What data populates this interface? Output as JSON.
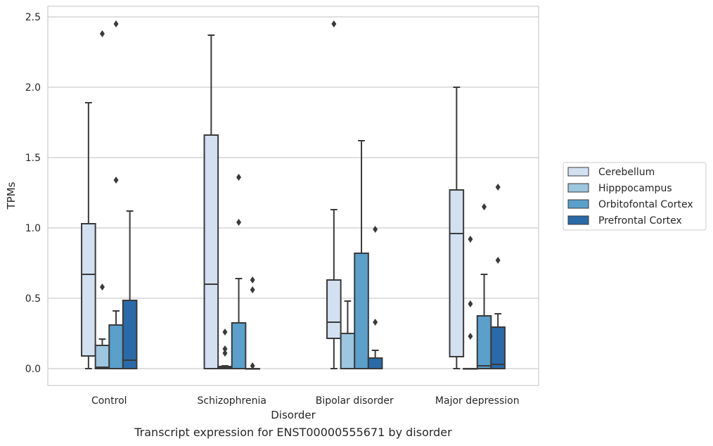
{
  "caption": "Transcript expression for ENST00000555671 by disorder",
  "chart_data": {
    "type": "box",
    "xlabel": "Disorder",
    "ylabel": "TPMs",
    "ylim": [
      -0.12,
      2.57
    ],
    "yticks": [
      0.0,
      0.5,
      1.0,
      1.5,
      2.0,
      2.5
    ],
    "ytick_labels": [
      "0.0",
      "0.5",
      "1.0",
      "1.5",
      "2.0",
      "2.5"
    ],
    "grid": "horizontal",
    "legend_position": "right",
    "categories": [
      "Control",
      "Schizophrenia",
      "Bipolar disorder",
      "Major depression"
    ],
    "series": [
      {
        "name": "Cerebellum",
        "color": "#d2e0f0",
        "boxes": [
          {
            "whislo": 0.0,
            "q1": 0.09,
            "med": 0.67,
            "q3": 1.03,
            "whishi": 1.89,
            "fliers": []
          },
          {
            "whislo": 0.0,
            "q1": 0.0,
            "med": 0.6,
            "q3": 1.66,
            "whishi": 2.37,
            "fliers": []
          },
          {
            "whislo": 0.0,
            "q1": 0.215,
            "med": 0.33,
            "q3": 0.63,
            "whishi": 1.13,
            "fliers": [
              2.45
            ]
          },
          {
            "whislo": 0.0,
            "q1": 0.085,
            "med": 0.96,
            "q3": 1.27,
            "whishi": 2.0,
            "fliers": []
          }
        ]
      },
      {
        "name": "Hipppocampus",
        "color": "#9dc6df",
        "boxes": [
          {
            "whislo": 0.0,
            "q1": 0.0,
            "med": 0.01,
            "q3": 0.165,
            "whishi": 0.21,
            "fliers": [
              0.58,
              2.38
            ]
          },
          {
            "whislo": 0.0,
            "q1": 0.0,
            "med": 0.01,
            "q3": 0.015,
            "whishi": 0.02,
            "fliers": [
              0.11,
              0.14,
              0.26
            ]
          },
          {
            "whislo": 0.0,
            "q1": 0.0,
            "med": 0.0,
            "q3": 0.25,
            "whishi": 0.48,
            "fliers": []
          },
          {
            "whislo": 0.0,
            "q1": 0.0,
            "med": 0.0,
            "q3": 0.0,
            "whishi": 0.0,
            "fliers": [
              0.23,
              0.46,
              0.92
            ]
          }
        ]
      },
      {
        "name": "Orbitofontal Cortex",
        "color": "#5b9fcb",
        "boxes": [
          {
            "whislo": 0.0,
            "q1": 0.0,
            "med": 0.0,
            "q3": 0.31,
            "whishi": 0.41,
            "fliers": [
              1.34,
              2.45
            ]
          },
          {
            "whislo": 0.0,
            "q1": 0.0,
            "med": 0.0,
            "q3": 0.325,
            "whishi": 0.64,
            "fliers": [
              1.04,
              1.36
            ]
          },
          {
            "whislo": 0.0,
            "q1": 0.0,
            "med": 0.0,
            "q3": 0.82,
            "whishi": 1.62,
            "fliers": []
          },
          {
            "whislo": 0.0,
            "q1": 0.0,
            "med": 0.02,
            "q3": 0.375,
            "whishi": 0.67,
            "fliers": [
              1.15
            ]
          }
        ]
      },
      {
        "name": "Prefrontal Cortex",
        "color": "#2a6aa8",
        "boxes": [
          {
            "whislo": 0.0,
            "q1": 0.0,
            "med": 0.06,
            "q3": 0.485,
            "whishi": 1.12,
            "fliers": []
          },
          {
            "whislo": 0.0,
            "q1": 0.0,
            "med": 0.0,
            "q3": 0.0,
            "whishi": 0.0,
            "fliers": [
              0.02,
              0.56,
              0.63
            ]
          },
          {
            "whislo": 0.0,
            "q1": 0.0,
            "med": 0.0,
            "q3": 0.075,
            "whishi": 0.13,
            "fliers": [
              0.33,
              0.99
            ]
          },
          {
            "whislo": 0.0,
            "q1": 0.0,
            "med": 0.03,
            "q3": 0.295,
            "whishi": 0.39,
            "fliers": [
              0.77,
              1.29
            ]
          }
        ]
      }
    ]
  }
}
